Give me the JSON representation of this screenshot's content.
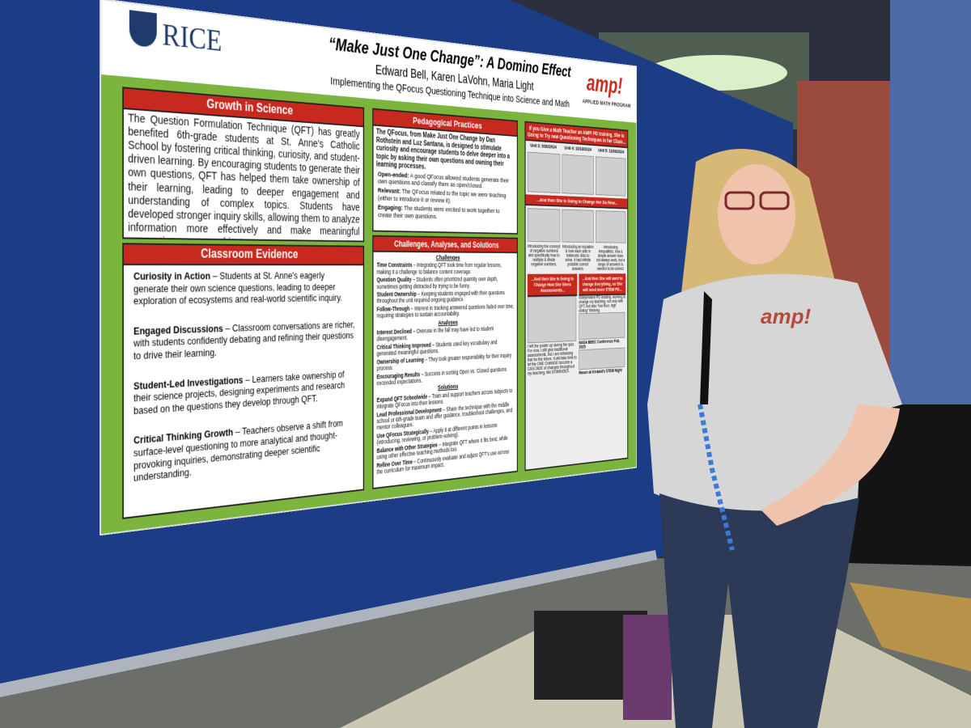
{
  "poster": {
    "logo": "RICE",
    "title": "“Make Just One Change”: A Domino Effect",
    "authors": "Edward Bell, Karen LaVohn, Maria Light",
    "subtitle": "Implementing the QFocus Questioning Technique into Science and Math",
    "program_logo": "amp!",
    "program": "APPLIED MATH PROGRAM",
    "growth": {
      "heading": "Growth in Science",
      "body": "The Question Formulation Technique (QFT) has greatly benefited 6th-grade students at St. Anne's Catholic School by fostering critical thinking, curiosity, and student-driven learning. By encouraging students to generate their own questions, QFT has helped them take ownership of their learning, leading to deeper engagement and understanding of complex topics. Students have developed stronger inquiry skills, allowing them to analyze information more effectively and make meaningful connections across subjects."
    },
    "evidence": {
      "heading": "Classroom Evidence",
      "items": [
        {
          "term": "Curiosity in Action",
          "text": " – Students at St. Anne's eagerly generate their own science questions, leading to deeper exploration of ecosystems and real-world scientific inquiry."
        },
        {
          "term": "Engaged Discussions",
          "text": " – Classroom conversations are richer, with students confidently debating and refining their questions to drive their learning."
        },
        {
          "term": "Student-Led Investigations",
          "text": " – Learners take ownership of their science projects, designing experiments and research based on the questions they develop through QFT."
        },
        {
          "term": "Critical Thinking Growth",
          "text": " – Teachers observe a shift from surface-level questioning to more analytical and thought-provoking inquiries, demonstrating deeper scientific understanding."
        }
      ]
    },
    "practices": {
      "heading": "Pedagogical Practices",
      "intro": "The QFocus, from Make Just One Change by Dan Rothstein and Luz Santana, is designed to stimulate curiosity and encourage students to delve deeper into a topic by asking their own questions and owning their learning processes.",
      "items": [
        {
          "term": "Open-ended:",
          "text": " A good QFocus allowed students generate their own questions and classify them as open/closed."
        },
        {
          "term": "Relevant:",
          "text": " The QFocus related to the topic we were teaching (either to introduce it or review it)."
        },
        {
          "term": "Engaging:",
          "text": " The students were excited to work together to create their own questions."
        }
      ]
    },
    "cas": {
      "heading": "Challenges, Analyses, and Solutions",
      "groups": [
        {
          "subheading": "Challenges",
          "items": [
            {
              "term": "Time Constraints",
              "text": " – Integrating QFT took time from regular lessons, making it a challenge to balance content coverage."
            },
            {
              "term": "Question Quality",
              "text": " – Students often prioritized quantity over depth, sometimes getting distracted by trying to be funny."
            },
            {
              "term": "Student Ownership",
              "text": " – Keeping students engaged with their questions throughout the unit required ongoing guidance."
            },
            {
              "term": "Follow-Through",
              "text": " – Interest in tracking answered questions faded over time, requiring strategies to sustain accountability."
            }
          ]
        },
        {
          "subheading": "Analyses",
          "items": [
            {
              "term": "Interest Declined",
              "text": " – Overuse in the fall may have led to student disengagement."
            },
            {
              "term": "Critical Thinking Improved",
              "text": " – Students used key vocabulary and generated meaningful questions."
            },
            {
              "term": "Ownership of Learning",
              "text": " – They took greater responsibility for their inquiry process."
            },
            {
              "term": "Encouraging Results",
              "text": " – Success in sorting Open vs. Closed questions exceeded expectations."
            }
          ]
        },
        {
          "subheading": "Solutions",
          "items": [
            {
              "term": "Expand QFT Schoolwide",
              "text": " – Train and support teachers across subjects to integrate QFocus into their lessons."
            },
            {
              "term": "Lead Professional Development",
              "text": " – Share the technique with the middle school or 6th-grade team and offer guidance, troubleshoot challenges, and mentor colleagues."
            },
            {
              "term": "Use QFocus Strategically",
              "text": " – Apply it at different points in lessons (introducing, reviewing, or problem-solving)."
            },
            {
              "term": "Balance with Other Strategies",
              "text": " – Integrate QFT where it fits best, while using other effective teaching methods too."
            },
            {
              "term": "Refine Over Time",
              "text": " – Continuously evaluate and adjust QFT's use across the curriculum for maximum impact."
            }
          ]
        }
      ]
    },
    "math": {
      "heading": "If you Give a Math Teacher an AMP! PD training, She is Going to Try new Questioning Techniques in her Class...",
      "units": [
        "Unit 3: 9/30/2024",
        "Unit 4: 10/18/2024",
        "Unit 5: 11/08/2024"
      ],
      "do_now": "...And then She is Going to Change Her Do Now...",
      "captions": [
        "Introducing the concept of negative numbers and specifically how to multiply & divide negative numbers.",
        "Introducing an equation & how each side is balanced. Also to solve, it had infinite possible correct answers.",
        "Introducing inequalities, how a simple answer does not always work, but a range of answers is needed to be correct."
      ],
      "assess": "...And then She is Going to Change How She Gives Assessments...",
      "assess_text": "I left the poster up during the quiz. For now, I still give traditional assessments, but I am rethinking that for the future. It will take time to let the ONE CHANGE become a CASCADE of changes throughout my teaching, like DOMINOES.",
      "stem": "...And then She will want to change Everything, so She will need more STEM PD...",
      "stem_text": "Independent PD reading, working to change my teaching, not only with QFT, but also “low floor, high ceiling” thinking.",
      "nasa": "NASA BEEC Conference Feb. 2025",
      "raven": "Raven at Kinkaid's STEM Night"
    }
  },
  "shirt_text": "amp!"
}
